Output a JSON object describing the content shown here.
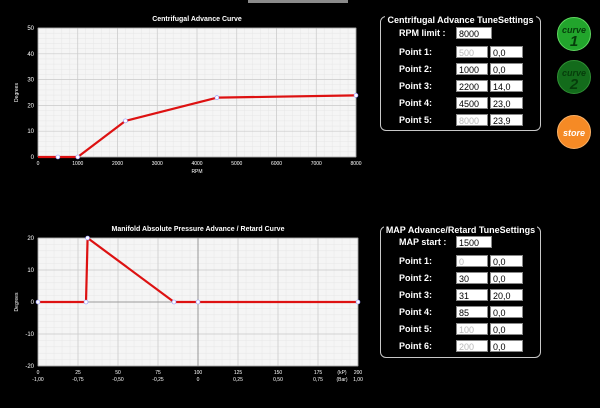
{
  "centrifugal_panel": {
    "title": "Centrifugal Advance TuneSettings",
    "rpm_limit_label": "RPM limit :",
    "rpm_limit_value": "8000",
    "points": [
      {
        "label": "Point 1:",
        "rpm": "500",
        "deg": "0,0",
        "rpm_disabled": true
      },
      {
        "label": "Point 2:",
        "rpm": "1000",
        "deg": "0,0",
        "rpm_disabled": false
      },
      {
        "label": "Point 3:",
        "rpm": "2200",
        "deg": "14,0",
        "rpm_disabled": false
      },
      {
        "label": "Point 4:",
        "rpm": "4500",
        "deg": "23,0",
        "rpm_disabled": false
      },
      {
        "label": "Point 5:",
        "rpm": "8000",
        "deg": "23,9",
        "rpm_disabled": true
      }
    ]
  },
  "map_panel": {
    "title": "MAP Advance/Retard TuneSettings",
    "map_start_label": "MAP start :",
    "map_start_value": "1500",
    "points": [
      {
        "label": "Point 1:",
        "kpa": "0",
        "deg": "0,0",
        "kpa_disabled": true
      },
      {
        "label": "Point 2:",
        "kpa": "30",
        "deg": "0,0",
        "kpa_disabled": false
      },
      {
        "label": "Point 3:",
        "kpa": "31",
        "deg": "20,0",
        "kpa_disabled": false
      },
      {
        "label": "Point 4:",
        "kpa": "85",
        "deg": "0,0",
        "kpa_disabled": false
      },
      {
        "label": "Point 5:",
        "kpa": "100",
        "deg": "0,0",
        "kpa_disabled": true
      },
      {
        "label": "Point 6:",
        "kpa": "200",
        "deg": "0,0",
        "kpa_disabled": true
      }
    ]
  },
  "buttons": {
    "curve1_text": "curve",
    "curve1_num": "1",
    "curve2_text": "curve",
    "curve2_num": "2",
    "store": "store"
  },
  "colors": {
    "curve_line": "#dd1111",
    "button_green": "#22a52c",
    "button_dark_green": "#136b1b",
    "button_orange": "#f58a25"
  },
  "chart_data": [
    {
      "type": "line",
      "title": "Centrifugal Advance Curve",
      "xlabel": "RPM",
      "ylabel": "Degrees",
      "xlim": [
        0,
        8000
      ],
      "ylim": [
        0,
        50
      ],
      "xticks": [
        "0",
        "1000",
        "2000",
        "3000",
        "4000",
        "5000",
        "6000",
        "7000",
        "8000"
      ],
      "yticks": [
        "0",
        "10",
        "20",
        "30",
        "40",
        "50"
      ],
      "grid": true,
      "series": [
        {
          "x": [
            500,
            1000,
            2200,
            4500,
            8000
          ],
          "y": [
            0,
            0,
            14,
            23,
            23.9
          ]
        }
      ]
    },
    {
      "type": "line",
      "title": "Manifold Absolute Pressure Advance / Retard Curve",
      "xlabel": "(kP)",
      "xlabel2": "(Bar)",
      "ylabel": "Degrees",
      "xlim": [
        0,
        200
      ],
      "ylim": [
        -20,
        20
      ],
      "xticks": [
        "0",
        "25",
        "50",
        "75",
        "100",
        "125",
        "150",
        "175",
        "200"
      ],
      "xticks2": [
        "-1,00",
        "-0,75",
        "-0,50",
        "-0,25",
        "0",
        "0,25",
        "0,50",
        "0,75",
        "1,00"
      ],
      "yticks": [
        "-20",
        "-10",
        "0",
        "10",
        "20"
      ],
      "grid": true,
      "series": [
        {
          "x": [
            0,
            30,
            31,
            85,
            100,
            200
          ],
          "y": [
            0,
            0,
            20,
            0,
            0,
            0
          ]
        }
      ]
    }
  ]
}
